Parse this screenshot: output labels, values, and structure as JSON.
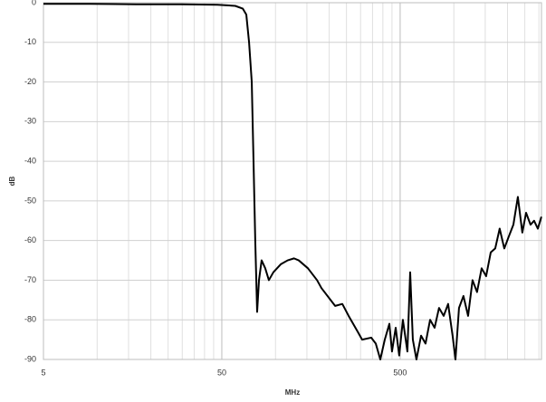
{
  "chart_data": {
    "type": "line",
    "x_label": "MHz",
    "y_label": "dB",
    "x": [
      5,
      9.18,
      16.5,
      29.6,
      47.2,
      59.5,
      65.6,
      68.6,
      71.1,
      73.6,
      75.3,
      77.0,
      78.9,
      80.8,
      83.6,
      87.6,
      91.8,
      97.3,
      107,
      117,
      127,
      135,
      152,
      171,
      181,
      216,
      237,
      257,
      289,
      306,
      344,
      365,
      387,
      410,
      435,
      450,
      472,
      494,
      518,
      549,
      569,
      589,
      617,
      655,
      694,
      736,
      780,
      826,
      877,
      929,
      984,
      1021,
      1069,
      1132,
      1202,
      1273,
      1349,
      1432,
      1517,
      1610,
      1706,
      1807,
      1918,
      2032,
      2157,
      2285,
      2421,
      2541,
      2691,
      2818,
      2958,
      3097
    ],
    "values": [
      -0.3,
      -0.3,
      -0.4,
      -0.4,
      -0.5,
      -0.8,
      -1.5,
      -3,
      -10,
      -20,
      -40,
      -60,
      -78,
      -70,
      -65,
      -67,
      -70,
      -68,
      -66,
      -65,
      -64.5,
      -65,
      -67,
      -70,
      -72,
      -76.5,
      -76,
      -79,
      -83,
      -85,
      -84.5,
      -86,
      -90,
      -85,
      -81,
      -88,
      -82,
      -89,
      -80,
      -88,
      -68,
      -85,
      -90,
      -84,
      -86,
      -80,
      -82,
      -77,
      -79,
      -76,
      -84,
      -90,
      -77,
      -74,
      -79,
      -70,
      -73,
      -67,
      -69,
      -63,
      -62,
      -57,
      -62,
      -59,
      -56,
      -49,
      -58,
      -53,
      -56,
      -55,
      -57,
      -54
    ],
    "color": "#000000",
    "log_x": true,
    "xlim": [
      5,
      3100
    ],
    "xticks": [
      5,
      50,
      500
    ],
    "minor_xticks": [
      10,
      15,
      20,
      25,
      30,
      35,
      40,
      45,
      100,
      150,
      200,
      250,
      300,
      350,
      400,
      450,
      1000,
      1500,
      2000,
      2500,
      3000
    ],
    "ylim": [
      -90,
      0
    ],
    "yticks": [
      0,
      -10,
      -20,
      -30,
      -40,
      -50,
      -60,
      -70,
      -80,
      -90
    ],
    "grid": true
  }
}
